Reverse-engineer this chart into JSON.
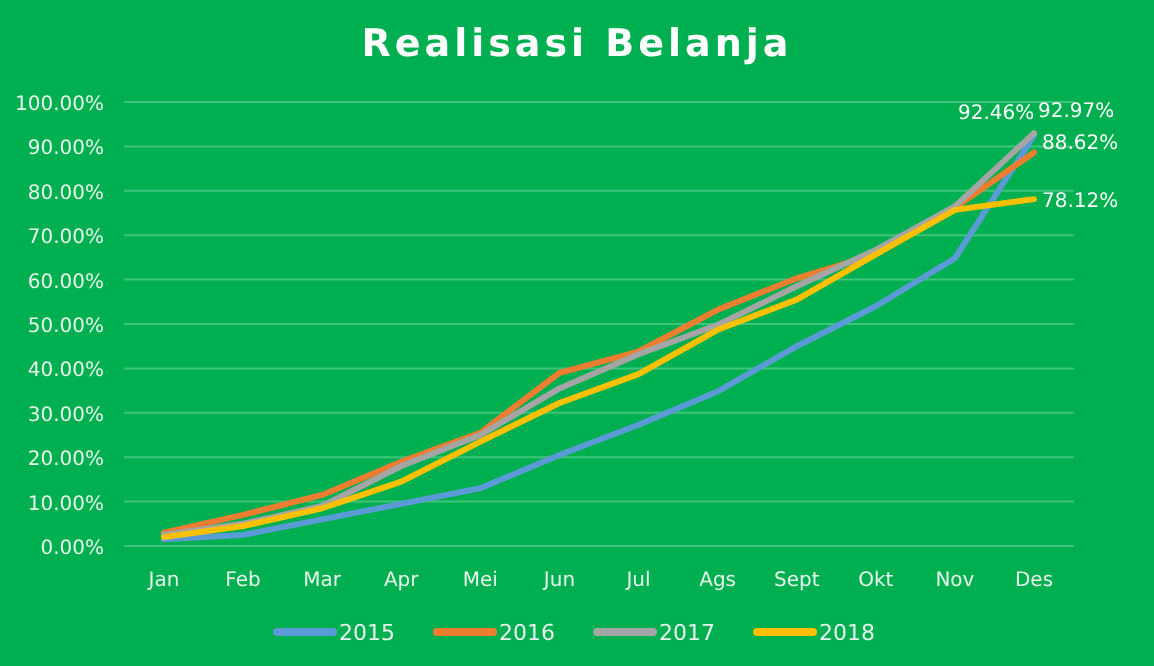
{
  "chart_data": {
    "type": "line",
    "title": "Realisasi Belanja",
    "categories": [
      "Jan",
      "Feb",
      "Mar",
      "Apr",
      "Mei",
      "Jun",
      "Jul",
      "Ags",
      "Sept",
      "Okt",
      "Nov",
      "Des"
    ],
    "series": [
      {
        "name": "2015",
        "color": "#5b9bd5",
        "values": [
          1.5,
          2.5,
          6,
          9.5,
          13,
          20.5,
          27.3,
          34.8,
          45,
          54,
          64.8,
          92.46
        ],
        "value_labels": [
          null,
          null,
          null,
          null,
          null,
          null,
          null,
          null,
          null,
          null,
          null,
          "92.46%"
        ]
      },
      {
        "name": "2016",
        "color": "#ed7d31",
        "values": [
          3,
          7,
          11.5,
          19,
          25.5,
          39,
          43.8,
          53.2,
          60.3,
          65.7,
          76.2,
          88.62
        ],
        "value_labels": [
          null,
          null,
          null,
          null,
          null,
          null,
          null,
          null,
          null,
          null,
          null,
          "88.62%"
        ]
      },
      {
        "name": "2017",
        "color": "#a5a5a5",
        "values": [
          2.5,
          5,
          9,
          18,
          25,
          35.5,
          43.2,
          49.8,
          58.5,
          66.7,
          76.5,
          92.97
        ],
        "value_labels": [
          null,
          null,
          null,
          null,
          null,
          null,
          null,
          null,
          null,
          null,
          null,
          "92.97%"
        ]
      },
      {
        "name": "2018",
        "color": "#ffc000",
        "values": [
          2,
          4.5,
          8.5,
          14.5,
          23.5,
          32.2,
          38.7,
          48.7,
          55.5,
          65.7,
          75.7,
          78.12
        ],
        "value_labels": [
          null,
          null,
          null,
          null,
          null,
          null,
          null,
          null,
          null,
          null,
          null,
          "78.12%"
        ]
      }
    ],
    "ylim": [
      0,
      100
    ],
    "yticks": [
      {
        "value": 0,
        "label": "0.00%"
      },
      {
        "value": 10,
        "label": "10.00%"
      },
      {
        "value": 20,
        "label": "20.00%"
      },
      {
        "value": 30,
        "label": "30.00%"
      },
      {
        "value": 40,
        "label": "40.00%"
      },
      {
        "value": 50,
        "label": "50.00%"
      },
      {
        "value": 60,
        "label": "60.00%"
      },
      {
        "value": 70,
        "label": "70.00%"
      },
      {
        "value": 80,
        "label": "80.00%"
      },
      {
        "value": 90,
        "label": "90.00%"
      },
      {
        "value": 100,
        "label": "100.00%"
      }
    ],
    "grid": "y",
    "legend": "bottom",
    "marker": "none",
    "line_style": "solid"
  }
}
